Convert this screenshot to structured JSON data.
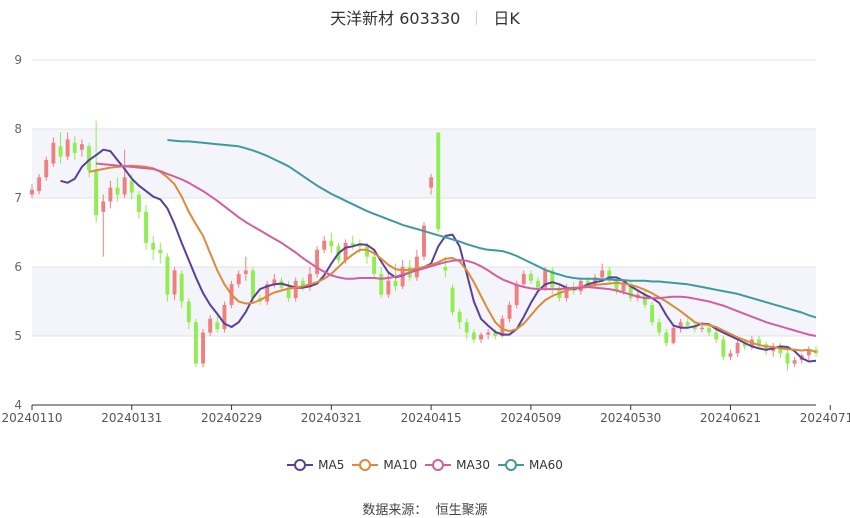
{
  "title": {
    "name": "天洋新材 603330",
    "period": "日K"
  },
  "source": {
    "label": "数据来源：",
    "provider": "恒生聚源"
  },
  "colors": {
    "up": "#f08080",
    "down": "#90ee50",
    "MA5": "#5b3f9a",
    "MA10": "#dd8a3a",
    "MA30": "#d35ea0",
    "MA60": "#3e9aa0"
  },
  "chart_data": {
    "type": "candlestick",
    "y_ticks": [
      "4",
      "5",
      "6",
      "7",
      "8",
      "9"
    ],
    "ylim": [
      4,
      9
    ],
    "x_tick_labels": [
      "20240110",
      "20240131",
      "20240229",
      "20240321",
      "20240415",
      "20240509",
      "20240530",
      "20240621",
      "20240711"
    ],
    "x_tick_index": [
      0,
      14,
      28,
      42,
      56,
      70,
      84,
      98,
      112
    ],
    "grid": true,
    "legend_position": "bottom",
    "series": [
      {
        "name": "MA5",
        "values": [
          7.25,
          7.22,
          7.28,
          7.45,
          7.55,
          7.62,
          7.7,
          7.68,
          7.55,
          7.42,
          7.28,
          7.18,
          7.1,
          7.02,
          6.98,
          6.85,
          6.62,
          6.35,
          6.1,
          5.85,
          5.62,
          5.45,
          5.32,
          5.18,
          5.13,
          5.2,
          5.35,
          5.55,
          5.68,
          5.72,
          5.75,
          5.76,
          5.73,
          5.7,
          5.7,
          5.72,
          5.76,
          5.88,
          6.05,
          6.2,
          6.28,
          6.3,
          6.33,
          6.32,
          6.25,
          6.08,
          5.92,
          5.85,
          5.88,
          5.92,
          5.96,
          6.0,
          6.05,
          6.3,
          6.45,
          6.47,
          6.3,
          5.9,
          5.5,
          5.25,
          5.15,
          5.06,
          5.02,
          5.02,
          5.1,
          5.28,
          5.48,
          5.65,
          5.75,
          5.78,
          5.75,
          5.7,
          5.68,
          5.7,
          5.75,
          5.78,
          5.8,
          5.85,
          5.85,
          5.8,
          5.72,
          5.66,
          5.6,
          5.55,
          5.48,
          5.3,
          5.15,
          5.12,
          5.12,
          5.14,
          5.18,
          5.17,
          5.1,
          5.05,
          5.0,
          4.95,
          4.9,
          4.85,
          4.82,
          4.8,
          4.82,
          4.85,
          4.84,
          4.78,
          4.68,
          4.63,
          4.64
        ]
      },
      {
        "name": "MA10",
        "values": [
          7.38,
          7.4,
          7.42,
          7.44,
          7.45,
          7.46,
          7.47,
          7.46,
          7.45,
          7.43,
          7.38,
          7.3,
          7.2,
          7.02,
          6.8,
          6.62,
          6.45,
          6.2,
          5.95,
          5.75,
          5.6,
          5.5,
          5.47,
          5.48,
          5.52,
          5.58,
          5.63,
          5.66,
          5.69,
          5.7,
          5.72,
          5.75,
          5.78,
          5.83,
          5.9,
          6.0,
          6.1,
          6.18,
          6.25,
          6.25,
          6.2,
          6.12,
          6.03,
          5.97,
          5.95,
          5.96,
          5.98,
          6.0,
          6.03,
          6.07,
          6.12,
          6.13,
          6.08,
          5.95,
          5.78,
          5.58,
          5.38,
          5.2,
          5.1,
          5.07,
          5.1,
          5.18,
          5.3,
          5.42,
          5.52,
          5.58,
          5.62,
          5.66,
          5.69,
          5.71,
          5.72,
          5.74,
          5.75,
          5.76,
          5.77,
          5.76,
          5.74,
          5.71,
          5.67,
          5.62,
          5.56,
          5.5,
          5.43,
          5.36,
          5.28,
          5.2,
          5.17,
          5.16,
          5.13,
          5.08,
          5.03,
          4.98,
          4.94,
          4.9,
          4.87,
          4.85,
          4.84,
          4.82,
          4.81,
          4.8,
          4.79,
          4.8,
          4.77
        ]
      },
      {
        "name": "MA30",
        "values": [
          7.5,
          7.49,
          7.48,
          7.47,
          7.46,
          7.45,
          7.44,
          7.43,
          7.42,
          7.39,
          7.35,
          7.31,
          7.27,
          7.22,
          7.16,
          7.1,
          7.03,
          6.96,
          6.88,
          6.8,
          6.72,
          6.65,
          6.59,
          6.53,
          6.47,
          6.41,
          6.35,
          6.28,
          6.21,
          6.13,
          6.06,
          5.99,
          5.93,
          5.88,
          5.85,
          5.83,
          5.83,
          5.84,
          5.84,
          5.84,
          5.83,
          5.84,
          5.86,
          5.89,
          5.92,
          5.95,
          5.98,
          6.01,
          6.04,
          6.07,
          6.09,
          6.1,
          6.09,
          6.06,
          6.01,
          5.95,
          5.88,
          5.82,
          5.78,
          5.74,
          5.71,
          5.69,
          5.68,
          5.68,
          5.68,
          5.68,
          5.69,
          5.7,
          5.7,
          5.71,
          5.7,
          5.69,
          5.68,
          5.66,
          5.63,
          5.6,
          5.57,
          5.55,
          5.55,
          5.55,
          5.56,
          5.57,
          5.57,
          5.56,
          5.54,
          5.52,
          5.5,
          5.47,
          5.44,
          5.4,
          5.36,
          5.32,
          5.28,
          5.24,
          5.2,
          5.17,
          5.14,
          5.11,
          5.08,
          5.05,
          5.02,
          5.0
        ]
      },
      {
        "name": "MA60",
        "values": [
          7.84,
          7.83,
          7.82,
          7.82,
          7.81,
          7.8,
          7.79,
          7.78,
          7.77,
          7.76,
          7.75,
          7.72,
          7.69,
          7.65,
          7.61,
          7.56,
          7.51,
          7.46,
          7.39,
          7.32,
          7.25,
          7.18,
          7.12,
          7.06,
          7.01,
          6.96,
          6.91,
          6.86,
          6.81,
          6.77,
          6.73,
          6.69,
          6.65,
          6.61,
          6.58,
          6.55,
          6.52,
          6.49,
          6.46,
          6.43,
          6.4,
          6.37,
          6.33,
          6.3,
          6.27,
          6.25,
          6.24,
          6.23,
          6.2,
          6.16,
          6.11,
          6.06,
          6.01,
          5.96,
          5.92,
          5.89,
          5.86,
          5.84,
          5.83,
          5.83,
          5.83,
          5.82,
          5.82,
          5.81,
          5.81,
          5.8,
          5.8,
          5.8,
          5.79,
          5.79,
          5.78,
          5.77,
          5.76,
          5.75,
          5.73,
          5.71,
          5.69,
          5.67,
          5.65,
          5.63,
          5.61,
          5.58,
          5.55,
          5.52,
          5.49,
          5.46,
          5.43,
          5.4,
          5.37,
          5.34,
          5.3,
          5.27
        ]
      }
    ],
    "candles": [
      [
        7.05,
        7.12,
        7.0,
        7.2
      ],
      [
        7.1,
        7.3,
        7.05,
        7.35
      ],
      [
        7.3,
        7.55,
        7.25,
        7.6
      ],
      [
        7.5,
        7.8,
        7.45,
        7.88
      ],
      [
        7.75,
        7.6,
        7.5,
        7.95
      ],
      [
        7.6,
        7.85,
        7.55,
        7.95
      ],
      [
        7.8,
        7.65,
        7.55,
        7.9
      ],
      [
        7.7,
        7.78,
        7.6,
        7.85
      ],
      [
        7.75,
        7.4,
        7.3,
        7.8
      ],
      [
        7.4,
        6.75,
        6.65,
        8.12
      ],
      [
        6.8,
        6.95,
        6.15,
        7.05
      ],
      [
        6.95,
        7.15,
        6.85,
        7.25
      ],
      [
        7.15,
        7.05,
        6.95,
        7.3
      ],
      [
        7.05,
        7.3,
        7.0,
        7.7
      ],
      [
        7.25,
        7.08,
        6.98,
        7.35
      ],
      [
        7.05,
        6.8,
        6.7,
        7.1
      ],
      [
        6.8,
        6.35,
        6.25,
        6.9
      ],
      [
        6.35,
        6.25,
        6.1,
        6.45
      ],
      [
        6.25,
        6.2,
        6.05,
        6.35
      ],
      [
        6.15,
        5.6,
        5.5,
        6.2
      ],
      [
        5.6,
        5.95,
        5.52,
        6.0
      ],
      [
        5.9,
        5.5,
        5.4,
        5.95
      ],
      [
        5.5,
        5.2,
        5.1,
        5.55
      ],
      [
        5.2,
        4.6,
        4.55,
        5.25
      ],
      [
        4.6,
        5.05,
        4.55,
        5.1
      ],
      [
        5.05,
        5.25,
        5.0,
        5.3
      ],
      [
        5.2,
        5.1,
        5.05,
        5.3
      ],
      [
        5.1,
        5.45,
        5.05,
        5.5
      ],
      [
        5.45,
        5.75,
        5.4,
        5.8
      ],
      [
        5.75,
        5.9,
        5.7,
        5.95
      ],
      [
        5.9,
        5.95,
        5.8,
        6.15
      ],
      [
        5.95,
        5.55,
        5.5,
        6.0
      ],
      [
        5.55,
        5.5,
        5.45,
        5.6
      ],
      [
        5.5,
        5.75,
        5.45,
        5.8
      ],
      [
        5.75,
        5.82,
        5.7,
        5.9
      ],
      [
        5.8,
        5.7,
        5.65,
        5.85
      ],
      [
        5.7,
        5.55,
        5.5,
        5.8
      ],
      [
        5.55,
        5.8,
        5.5,
        5.85
      ],
      [
        5.8,
        5.72,
        5.65,
        5.85
      ],
      [
        5.72,
        5.9,
        5.65,
        6.0
      ],
      [
        5.9,
        6.25,
        5.85,
        6.3
      ],
      [
        6.25,
        6.38,
        6.2,
        6.45
      ],
      [
        6.38,
        6.3,
        6.2,
        6.5
      ],
      [
        6.3,
        6.1,
        6.05,
        6.35
      ],
      [
        6.1,
        6.35,
        6.05,
        6.4
      ],
      [
        6.35,
        6.32,
        6.25,
        6.45
      ],
      [
        6.32,
        6.3,
        6.2,
        6.4
      ],
      [
        6.3,
        6.15,
        6.05,
        6.35
      ],
      [
        6.15,
        5.9,
        5.85,
        6.2
      ],
      [
        5.9,
        5.6,
        5.55,
        6.0
      ],
      [
        5.6,
        5.8,
        5.55,
        5.9
      ],
      [
        5.8,
        5.72,
        5.65,
        6.05
      ],
      [
        5.72,
        6.0,
        5.68,
        6.1
      ],
      [
        6.0,
        5.85,
        5.8,
        6.1
      ],
      [
        5.85,
        6.15,
        5.8,
        6.25
      ],
      [
        6.15,
        6.6,
        6.1,
        6.65
      ],
      [
        7.15,
        7.3,
        7.05,
        7.35
      ],
      [
        7.95,
        6.55,
        6.5,
        7.95
      ],
      [
        6.0,
        5.95,
        5.85,
        6.15
      ],
      [
        5.7,
        5.35,
        5.3,
        5.75
      ],
      [
        5.35,
        5.2,
        5.1,
        5.4
      ],
      [
        5.2,
        5.05,
        4.95,
        5.25
      ],
      [
        5.05,
        4.95,
        4.9,
        5.1
      ],
      [
        4.95,
        5.02,
        4.9,
        5.05
      ],
      [
        5.02,
        5.05,
        4.95,
        5.1
      ],
      [
        5.05,
        5.0,
        4.95,
        5.1
      ],
      [
        5.0,
        5.25,
        4.98,
        5.3
      ],
      [
        5.25,
        5.45,
        5.2,
        5.5
      ],
      [
        5.45,
        5.75,
        5.4,
        5.8
      ],
      [
        5.75,
        5.9,
        5.7,
        5.95
      ],
      [
        5.9,
        5.8,
        5.75,
        5.95
      ],
      [
        5.8,
        5.7,
        5.65,
        5.85
      ],
      [
        5.7,
        5.95,
        5.65,
        6.0
      ],
      [
        5.95,
        5.7,
        5.6,
        6.0
      ],
      [
        5.7,
        5.55,
        5.5,
        5.75
      ],
      [
        5.55,
        5.7,
        5.5,
        5.75
      ],
      [
        5.7,
        5.65,
        5.6,
        5.78
      ],
      [
        5.65,
        5.8,
        5.6,
        5.85
      ],
      [
        5.8,
        5.75,
        5.7,
        5.85
      ],
      [
        5.75,
        5.85,
        5.7,
        5.9
      ],
      [
        5.85,
        5.95,
        5.8,
        6.05
      ],
      [
        5.95,
        5.8,
        5.75,
        6.0
      ],
      [
        5.8,
        5.65,
        5.6,
        5.85
      ],
      [
        5.65,
        5.75,
        5.6,
        5.8
      ],
      [
        5.75,
        5.55,
        5.5,
        5.8
      ],
      [
        5.55,
        5.6,
        5.5,
        5.65
      ],
      [
        5.6,
        5.45,
        5.4,
        5.65
      ],
      [
        5.45,
        5.2,
        5.15,
        5.5
      ],
      [
        5.2,
        5.05,
        5.0,
        5.25
      ],
      [
        5.05,
        4.9,
        4.85,
        5.1
      ],
      [
        4.9,
        5.12,
        4.88,
        5.15
      ],
      [
        5.12,
        5.2,
        5.05,
        5.25
      ],
      [
        5.2,
        5.15,
        5.1,
        5.25
      ],
      [
        5.15,
        5.1,
        5.05,
        5.2
      ],
      [
        5.1,
        5.12,
        5.05,
        5.18
      ],
      [
        5.12,
        5.05,
        5.0,
        5.15
      ],
      [
        5.05,
        4.95,
        4.9,
        5.1
      ],
      [
        4.95,
        4.7,
        4.65,
        5.0
      ],
      [
        4.7,
        4.75,
        4.65,
        4.8
      ],
      [
        4.75,
        4.9,
        4.7,
        4.95
      ],
      [
        4.9,
        4.85,
        4.8,
        4.95
      ],
      [
        4.85,
        4.95,
        4.8,
        5.0
      ],
      [
        4.95,
        4.88,
        4.8,
        5.0
      ],
      [
        4.88,
        4.78,
        4.72,
        4.92
      ],
      [
        4.78,
        4.85,
        4.7,
        4.9
      ],
      [
        4.85,
        4.75,
        4.68,
        4.9
      ],
      [
        4.75,
        4.6,
        4.5,
        4.8
      ],
      [
        4.6,
        4.65,
        4.55,
        4.7
      ],
      [
        4.65,
        4.72,
        4.6,
        4.75
      ],
      [
        4.72,
        4.8,
        4.65,
        4.85
      ],
      [
        4.8,
        4.75,
        4.7,
        4.85
      ]
    ]
  }
}
